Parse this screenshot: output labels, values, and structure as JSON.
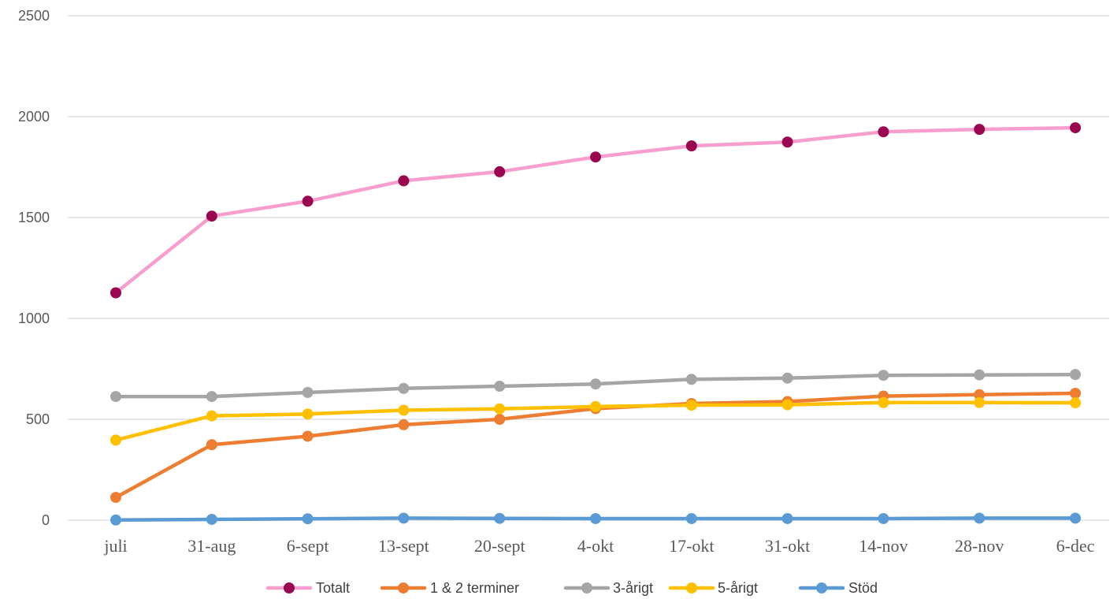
{
  "chart_data": {
    "type": "line",
    "title": "",
    "xlabel": "",
    "ylabel": "",
    "ylim": [
      0,
      2500
    ],
    "yticks": [
      0,
      500,
      1000,
      1500,
      2000,
      2500
    ],
    "grid": true,
    "legend_position": "bottom",
    "categories": [
      "juli",
      "31-aug",
      "6-sept",
      "13-sept",
      "20-sept",
      "4-okt",
      "17-okt",
      "31-okt",
      "14-nov",
      "28-nov",
      "6-dec"
    ],
    "series": [
      {
        "name": "Totalt",
        "line_color": "#f79ecf",
        "marker_color": "#9b0650",
        "values": [
          1127,
          1507,
          1581,
          1682,
          1727,
          1800,
          1855,
          1874,
          1925,
          1937,
          1945
        ]
      },
      {
        "name": "1 & 2 terminer",
        "line_color": "#ed7d31",
        "marker_color": "#ed7d31",
        "values": [
          113,
          374,
          416,
          473,
          500,
          553,
          578,
          588,
          615,
          622,
          629
        ]
      },
      {
        "name": "3-årigt",
        "line_color": "#a5a5a5",
        "marker_color": "#a5a5a5",
        "values": [
          613,
          613,
          633,
          653,
          664,
          675,
          698,
          704,
          718,
          720,
          722
        ]
      },
      {
        "name": "5-årigt",
        "line_color": "#ffc000",
        "marker_color": "#ffc000",
        "values": [
          397,
          517,
          526,
          545,
          552,
          563,
          570,
          572,
          583,
          583,
          582
        ]
      },
      {
        "name": "Stöd",
        "line_color": "#5b9bd5",
        "marker_color": "#5b9bd5",
        "values": [
          1,
          4,
          7,
          10,
          9,
          8,
          8,
          8,
          8,
          10,
          10
        ]
      }
    ]
  }
}
